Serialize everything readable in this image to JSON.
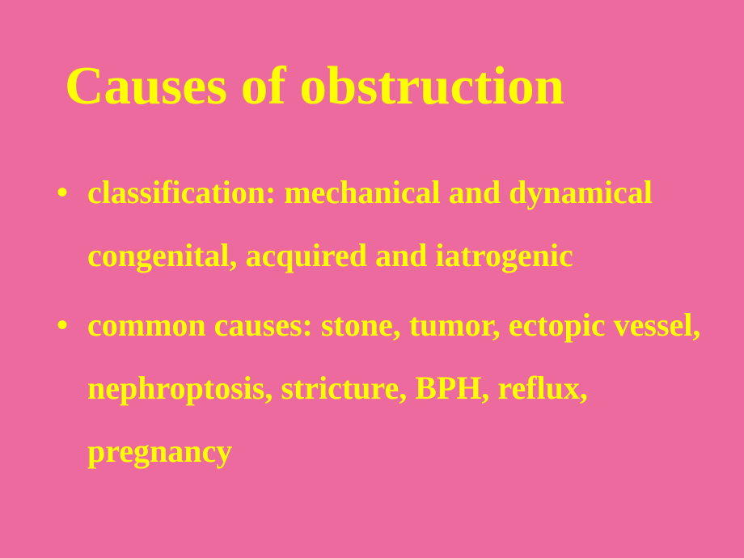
{
  "slide": {
    "background_color": "#ed6a9e",
    "text_color": "#ffff00",
    "title": "Causes of obstruction",
    "title_fontsize": 67,
    "body_fontsize": 40,
    "font_family": "Times New Roman",
    "bullets": [
      "classification: mechanical and dynamical congenital, acquired and iatrogenic",
      "common causes: stone, tumor, ectopic vessel, nephroptosis, stricture, BPH, reflux, pregnancy"
    ]
  }
}
